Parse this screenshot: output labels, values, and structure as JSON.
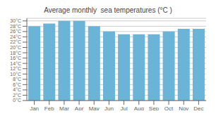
{
  "chart_data": {
    "type": "bar",
    "title": "Average monthly  sea temperatures (°C )",
    "categories": [
      "Jan",
      "Feb",
      "Mar",
      "Apr",
      "May",
      "Jun",
      "Jul",
      "Aug",
      "Sep",
      "Oct",
      "Nov",
      "Dec"
    ],
    "values": [
      28,
      29,
      30,
      30,
      28,
      26,
      25,
      25,
      25,
      26,
      27,
      27
    ],
    "color": "#6ab4d8",
    "ylim": [
      0,
      31
    ],
    "yticks": [
      {
        "value": 0,
        "label": "0°C"
      },
      {
        "value": 2,
        "label": "2°C"
      },
      {
        "value": 4,
        "label": "4°C"
      },
      {
        "value": 6,
        "label": "6°C"
      },
      {
        "value": 8,
        "label": "8°C"
      },
      {
        "value": 10,
        "label": "10°C"
      },
      {
        "value": 12,
        "label": "12°C"
      },
      {
        "value": 14,
        "label": "14°C"
      },
      {
        "value": 16,
        "label": "16°C"
      },
      {
        "value": 18,
        "label": "18°C"
      },
      {
        "value": 20,
        "label": "20°C"
      },
      {
        "value": 22,
        "label": "22°C"
      },
      {
        "value": 24,
        "label": "24°C"
      },
      {
        "value": 26,
        "label": "26°C"
      },
      {
        "value": 28,
        "label": "28°C"
      },
      {
        "value": 30,
        "label": "30°C"
      }
    ],
    "grid": true
  }
}
